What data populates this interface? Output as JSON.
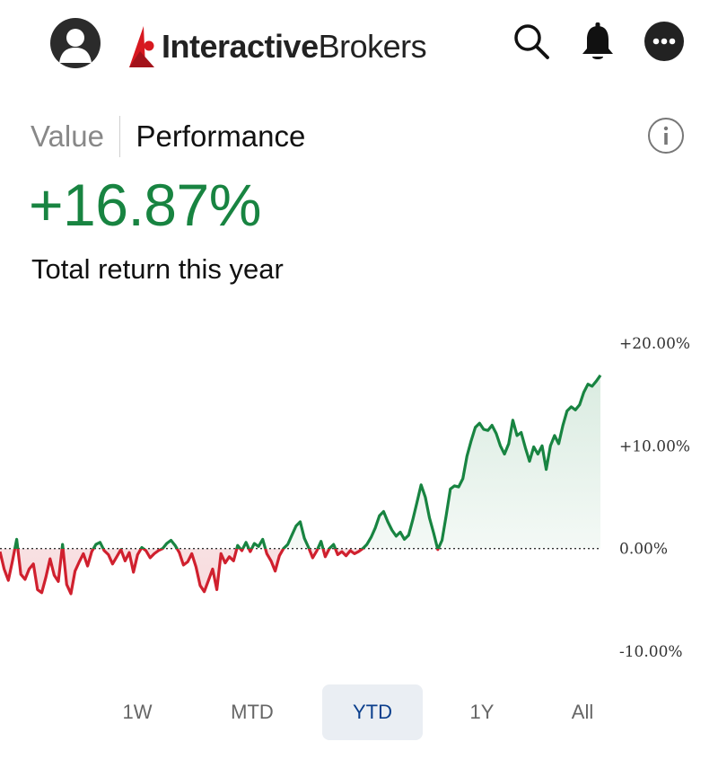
{
  "header": {
    "brand_primary": "Interactive",
    "brand_secondary": "Brokers",
    "icons": [
      "profile-icon",
      "search-icon",
      "bell-icon",
      "more-icon"
    ],
    "logo_color": "#d71920"
  },
  "tabs": [
    {
      "label": "Value",
      "active": false
    },
    {
      "label": "Performance",
      "active": true
    }
  ],
  "summary": {
    "value": "+16.87%",
    "caption": "Total return this year",
    "color": "#188441"
  },
  "ranges": [
    {
      "label": "1W",
      "selected": false
    },
    {
      "label": "MTD",
      "selected": false
    },
    {
      "label": "YTD",
      "selected": true
    },
    {
      "label": "1Y",
      "selected": false
    },
    {
      "label": "All",
      "selected": false
    }
  ],
  "chart_data": {
    "type": "line",
    "title": "",
    "xlabel": "",
    "ylabel": "",
    "ylim": [
      -10,
      20
    ],
    "yticks": [
      "+20.00%",
      "+10.00%",
      "0.00%",
      "-10.00%"
    ],
    "baseline": 0,
    "positive_color": "#188441",
    "negative_color": "#d0202e",
    "grid": false,
    "series": [
      {
        "values": [
          -0.3,
          -2.0,
          -3.1,
          -1.2,
          0.9,
          -2.5,
          -3.0,
          -2.0,
          -1.5,
          -4.0,
          -4.3,
          -2.8,
          -1.0,
          -2.6,
          -3.2,
          0.4,
          -3.5,
          -4.4,
          -2.2,
          -1.3,
          -0.5,
          -1.7,
          -0.3,
          0.4,
          0.6,
          -0.2,
          -0.6,
          -1.5,
          -0.8,
          -0.1,
          -1.2,
          -0.4,
          -2.3,
          -0.6,
          0.1,
          -0.2,
          -0.9,
          -0.5,
          -0.2,
          0.0,
          0.5,
          0.8,
          0.3,
          -0.4,
          -1.6,
          -1.3,
          -0.5,
          -1.8,
          -3.6,
          -4.2,
          -3.1,
          -2.0,
          -4.0,
          -0.5,
          -1.4,
          -0.8,
          -1.2,
          0.3,
          -0.2,
          0.6,
          -0.3,
          0.5,
          0.2,
          0.9,
          -0.5,
          -1.2,
          -2.2,
          -0.7,
          0.0,
          0.4,
          1.3,
          2.2,
          2.6,
          1.0,
          0.1,
          -0.9,
          -0.2,
          0.7,
          -0.8,
          0.0,
          0.4,
          -0.6,
          -0.3,
          -0.7,
          -0.2,
          -0.5,
          -0.3,
          0.0,
          0.4,
          1.1,
          2.0,
          3.2,
          3.6,
          2.6,
          1.8,
          1.2,
          1.6,
          0.9,
          1.3,
          2.8,
          4.5,
          6.2,
          5.0,
          3.0,
          1.5,
          -0.1,
          0.8,
          3.2,
          5.8,
          6.1,
          6.0,
          6.8,
          9.0,
          10.5,
          11.8,
          12.2,
          11.6,
          11.5,
          12.0,
          11.2,
          10.0,
          9.2,
          10.2,
          12.5,
          11.0,
          11.3,
          9.8,
          8.5,
          9.9,
          9.2,
          10.0,
          7.7,
          10.0,
          11.0,
          10.2,
          12.0,
          13.4,
          13.8,
          13.5,
          14.0,
          15.2,
          16.0,
          15.8,
          16.3,
          16.87
        ]
      }
    ]
  }
}
